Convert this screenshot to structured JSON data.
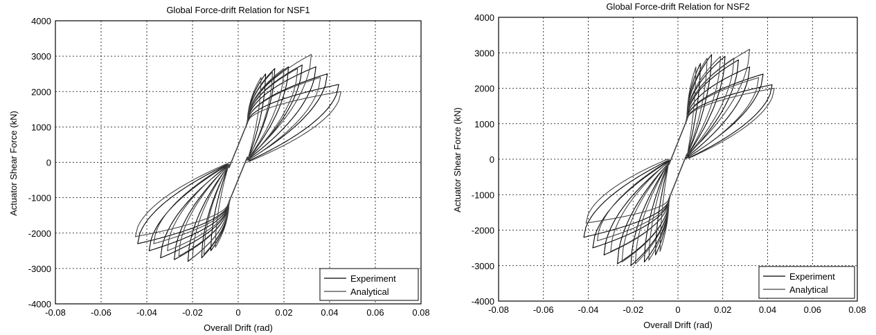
{
  "chart_data": [
    {
      "type": "line",
      "title": "Global Force-drift Relation for NSF1",
      "xlabel": "Overall Drift (rad)",
      "ylabel": "Actuator Shear Force (kN)",
      "xlim": [
        -0.08,
        0.08
      ],
      "ylim": [
        -4000,
        4000
      ],
      "xticks": [
        "-0.08",
        "-0.06",
        "-0.04",
        "-0.02",
        "0",
        "0.02",
        "0.04",
        "0.06",
        "0.08"
      ],
      "yticks": [
        "4000",
        "3000",
        "2000",
        "1000",
        "0",
        "-1000",
        "-2000",
        "-3000",
        "-4000"
      ],
      "grid": true,
      "legend_position": "bottom-right",
      "series": [
        {
          "name": "Experiment",
          "color": "#000000",
          "cycles": [
            {
              "dmax": 0.012,
              "fmax": 2500,
              "dmin": -0.012,
              "fmin": -2500
            },
            {
              "dmax": 0.016,
              "fmax": 2650,
              "dmin": -0.016,
              "fmin": -2700
            },
            {
              "dmax": 0.022,
              "fmax": 2700,
              "dmin": -0.022,
              "fmin": -2800
            },
            {
              "dmax": 0.028,
              "fmax": 2750,
              "dmin": -0.028,
              "fmin": -2750
            },
            {
              "dmax": 0.034,
              "fmax": 2700,
              "dmin": -0.034,
              "fmin": -2700
            },
            {
              "dmax": 0.039,
              "fmax": 2500,
              "dmin": -0.039,
              "fmin": -2500
            },
            {
              "dmax": 0.044,
              "fmax": 2200,
              "dmin": -0.044,
              "fmin": -2300
            }
          ]
        },
        {
          "name": "Analytical",
          "color": "#444444",
          "cycles": [
            {
              "dmax": 0.01,
              "fmax": 2400,
              "dmin": -0.01,
              "fmin": -2400
            },
            {
              "dmax": 0.015,
              "fmax": 2550,
              "dmin": -0.015,
              "fmin": -2600
            },
            {
              "dmax": 0.02,
              "fmax": 2650,
              "dmin": -0.02,
              "fmin": -2700
            },
            {
              "dmax": 0.026,
              "fmax": 2650,
              "dmin": -0.026,
              "fmin": -2650
            },
            {
              "dmax": 0.032,
              "fmax": 3050,
              "dmin": -0.031,
              "fmin": -2500
            },
            {
              "dmax": 0.036,
              "fmax": 2400,
              "dmin": -0.037,
              "fmin": -2300
            },
            {
              "dmax": 0.045,
              "fmax": 2000,
              "dmin": -0.045,
              "fmin": -2100
            }
          ]
        }
      ]
    },
    {
      "type": "line",
      "title": "Global Force-drift Relation for NSF2",
      "xlabel": "Overall Drift (rad)",
      "ylabel": "Actuator Shear Force (kN)",
      "xlim": [
        -0.08,
        0.08
      ],
      "ylim": [
        -4000,
        4000
      ],
      "xticks": [
        "-0.08",
        "-0.06",
        "-0.04",
        "-0.02",
        "0",
        "0.02",
        "0.04",
        "0.06",
        "0.08"
      ],
      "yticks": [
        "4000",
        "3000",
        "2000",
        "1000",
        "0",
        "-1000",
        "-2000",
        "-3000",
        "-4000"
      ],
      "grid": true,
      "legend_position": "bottom-right",
      "series": [
        {
          "name": "Experiment",
          "color": "#000000",
          "cycles": [
            {
              "dmax": 0.01,
              "fmax": 2700,
              "dmin": -0.01,
              "fmin": -2700
            },
            {
              "dmax": 0.015,
              "fmax": 2950,
              "dmin": -0.015,
              "fmin": -2900
            },
            {
              "dmax": 0.021,
              "fmax": 2900,
              "dmin": -0.021,
              "fmin": -3000
            },
            {
              "dmax": 0.027,
              "fmax": 2800,
              "dmin": -0.027,
              "fmin": -2950
            },
            {
              "dmax": 0.032,
              "fmax": 2600,
              "dmin": -0.033,
              "fmin": -2700
            },
            {
              "dmax": 0.038,
              "fmax": 2400,
              "dmin": -0.038,
              "fmin": -2500
            },
            {
              "dmax": 0.042,
              "fmax": 2100,
              "dmin": -0.042,
              "fmin": -2200
            }
          ]
        },
        {
          "name": "Analytical",
          "color": "#444444",
          "cycles": [
            {
              "dmax": 0.008,
              "fmax": 2600,
              "dmin": -0.008,
              "fmin": -2600
            },
            {
              "dmax": 0.013,
              "fmax": 2850,
              "dmin": -0.013,
              "fmin": -2850
            },
            {
              "dmax": 0.019,
              "fmax": 2900,
              "dmin": -0.019,
              "fmin": -2950
            },
            {
              "dmax": 0.025,
              "fmax": 2850,
              "dmin": -0.025,
              "fmin": -2900
            },
            {
              "dmax": 0.032,
              "fmax": 3100,
              "dmin": -0.03,
              "fmin": -2600
            },
            {
              "dmax": 0.036,
              "fmax": 2300,
              "dmin": -0.036,
              "fmin": -2300
            },
            {
              "dmax": 0.043,
              "fmax": 2000,
              "dmin": -0.041,
              "fmin": -1800
            }
          ]
        }
      ]
    }
  ]
}
